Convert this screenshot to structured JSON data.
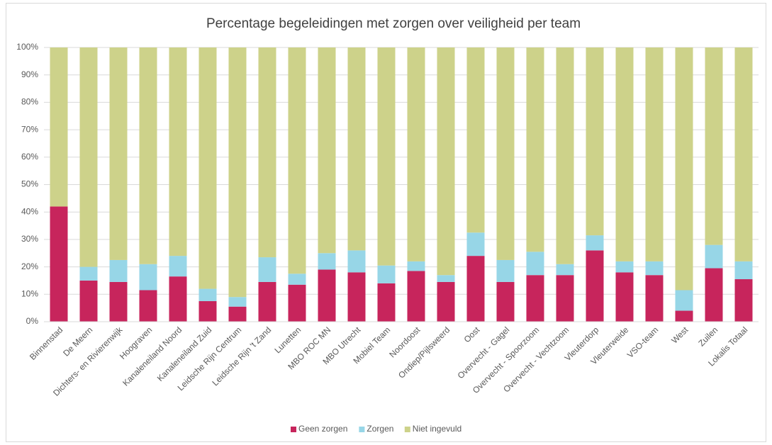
{
  "chart_data": {
    "type": "stacked_bar",
    "title": "Percentage begeleidingen met zorgen over veiligheid per team",
    "categories": [
      "Binnenstad",
      "De Meern",
      "Dichters- en Rivierenwijk",
      "Hoograven",
      "Kanaleneiland Noord",
      "Kanaleneiland Zuid",
      "Leidsche Rijn Centrum",
      "Leidsche Rijn 't Zand",
      "Lunetten",
      "MBO ROC MN",
      "MBO Utrecht",
      "Mobiel Team",
      "Noordoost",
      "Ondiep/Pijlsweerd",
      "Oost",
      "Overvecht - Gagel",
      "Overvecht - Spoorzoom",
      "Overvecht - Vechtzoom",
      "Vleuterdorp",
      "Vleuterweide",
      "VSO-team",
      "West",
      "Zuilen",
      "Lokalis Totaal"
    ],
    "series": [
      {
        "name": "Geen zorgen",
        "color": "#c7255c",
        "values": [
          42,
          15,
          14.5,
          11.5,
          16.5,
          7.5,
          5.5,
          14.5,
          13.5,
          19,
          18,
          14,
          18.5,
          14.5,
          24,
          14.5,
          17,
          17,
          26,
          18,
          17,
          4,
          19.5,
          15.5
        ]
      },
      {
        "name": "Zorgen",
        "color": "#97d6e7",
        "values": [
          0,
          5,
          8,
          9.5,
          7.5,
          4.5,
          3.5,
          9,
          4,
          6,
          8,
          6.5,
          3.5,
          2.5,
          8.5,
          8,
          8.5,
          4,
          5.5,
          4,
          5,
          7.5,
          8.5,
          6.5
        ]
      },
      {
        "name": "Niet ingevuld",
        "color": "#cdd28a",
        "values": [
          58,
          80,
          77.5,
          79,
          76,
          88,
          91,
          76.5,
          82.5,
          75,
          74,
          79.5,
          78,
          83,
          67.5,
          77.5,
          74.5,
          79,
          68.5,
          78,
          78,
          88.5,
          72,
          78
        ]
      }
    ],
    "ylim": [
      0,
      100
    ],
    "yticks": [
      {
        "value": 0,
        "label": "0%"
      },
      {
        "value": 10,
        "label": "10%"
      },
      {
        "value": 20,
        "label": "20%"
      },
      {
        "value": 30,
        "label": "30%"
      },
      {
        "value": 40,
        "label": "40%"
      },
      {
        "value": 50,
        "label": "50%"
      },
      {
        "value": 60,
        "label": "60%"
      },
      {
        "value": 70,
        "label": "70%"
      },
      {
        "value": 80,
        "label": "80%"
      },
      {
        "value": 90,
        "label": "90%"
      },
      {
        "value": 100,
        "label": "100%"
      }
    ],
    "grid": true
  }
}
